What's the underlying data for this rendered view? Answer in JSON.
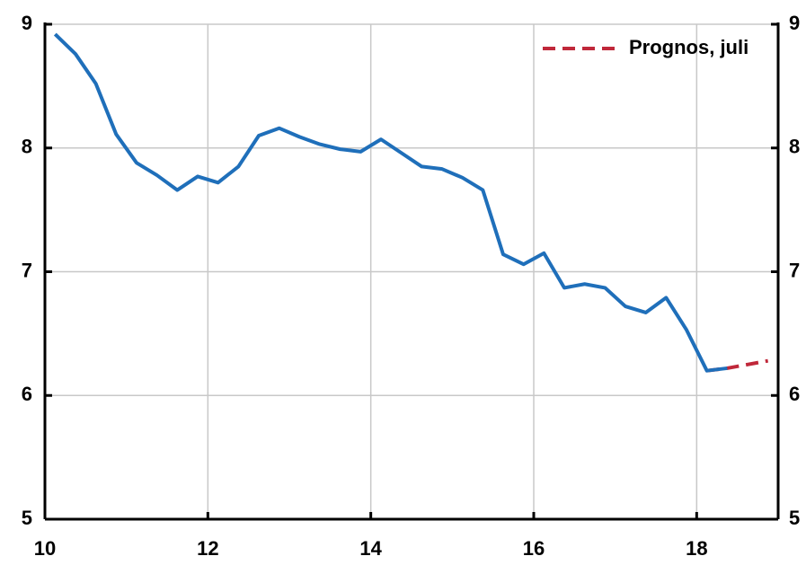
{
  "chart_data": {
    "type": "line",
    "x": [
      10.125,
      10.375,
      10.625,
      10.875,
      11.125,
      11.375,
      11.625,
      11.875,
      12.125,
      12.375,
      12.625,
      12.875,
      13.125,
      13.375,
      13.625,
      13.875,
      14.125,
      14.375,
      14.625,
      14.875,
      15.125,
      15.375,
      15.625,
      15.875,
      16.125,
      16.375,
      16.625,
      16.875,
      17.125,
      17.375,
      17.625,
      17.875,
      18.125,
      18.375,
      18.625,
      18.875
    ],
    "series": [
      {
        "color": "#1f6fba",
        "dash": false,
        "values": [
          8.92,
          8.76,
          8.52,
          8.11,
          7.88,
          7.78,
          7.66,
          7.77,
          7.72,
          7.85,
          8.1,
          8.16,
          8.09,
          8.03,
          7.99,
          7.97,
          8.07,
          7.96,
          7.85,
          7.83,
          7.76,
          7.66,
          7.14,
          7.06,
          7.15,
          6.87,
          6.9,
          6.87,
          6.72,
          6.67,
          6.79,
          6.53,
          6.2,
          6.22,
          null,
          null
        ]
      },
      {
        "name": "Prognos, juli",
        "color": "#c0283a",
        "dash": true,
        "values": [
          null,
          null,
          null,
          null,
          null,
          null,
          null,
          null,
          null,
          null,
          null,
          null,
          null,
          null,
          null,
          null,
          null,
          null,
          null,
          null,
          null,
          null,
          null,
          null,
          null,
          null,
          null,
          null,
          null,
          null,
          null,
          null,
          6.2,
          6.22,
          6.25,
          6.28
        ]
      }
    ],
    "xlim": [
      10,
      19
    ],
    "xticks": [
      10,
      12,
      14,
      16,
      18
    ],
    "ylim": [
      5,
      9
    ],
    "yticks": [
      5,
      6,
      7,
      8,
      9
    ],
    "y2lim": [
      5,
      9
    ],
    "y2ticks": [
      5,
      6,
      7,
      8,
      9
    ],
    "grid": true,
    "legend": "top-right"
  }
}
